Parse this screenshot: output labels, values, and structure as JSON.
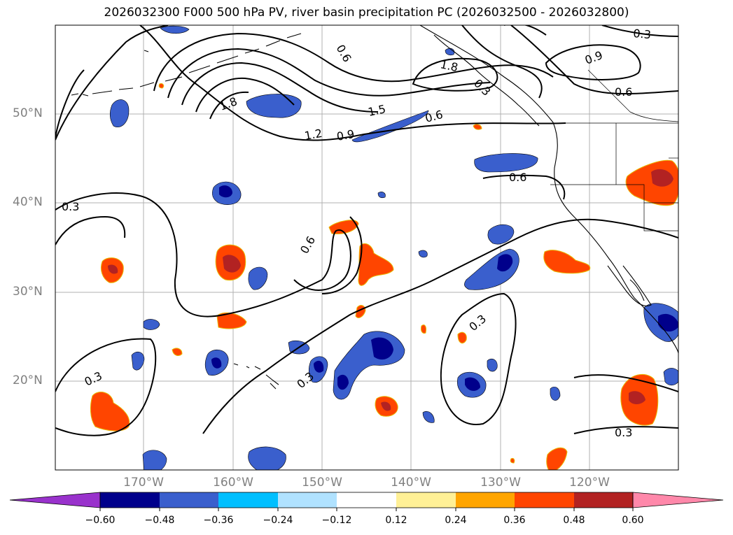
{
  "title": "2026032300 F000 500 hPa PV, river basin precipitation PC (2026032500 - 2026032800)",
  "latitude_labels": [
    "50°N",
    "40°N",
    "30°N",
    "20°N"
  ],
  "longitude_labels": [
    "170°W",
    "160°W",
    "150°W",
    "140°W",
    "130°W",
    "120°W"
  ],
  "pv_contour_labels": [
    "0.3",
    "0.3",
    "0.3",
    "0.3",
    "0.3",
    "0.6",
    "0.6",
    "0.6",
    "0.6",
    "0.6",
    "0.9",
    "0.9",
    "1.2",
    "1.5",
    "1.8",
    "1.8",
    "0.3",
    "0.3"
  ],
  "colorbar": {
    "ticks": [
      "−0.60",
      "−0.48",
      "−0.36",
      "−0.24",
      "−0.12",
      "0.12",
      "0.24",
      "0.36",
      "0.48",
      "0.60"
    ],
    "colors": [
      "#9932cc",
      "#00008b",
      "#3a5fcd",
      "#00bfff",
      "#b0e2ff",
      "#ffffff",
      "#fff096",
      "#ffa500",
      "#ff4500",
      "#b22222",
      "#ff88aa"
    ]
  }
}
